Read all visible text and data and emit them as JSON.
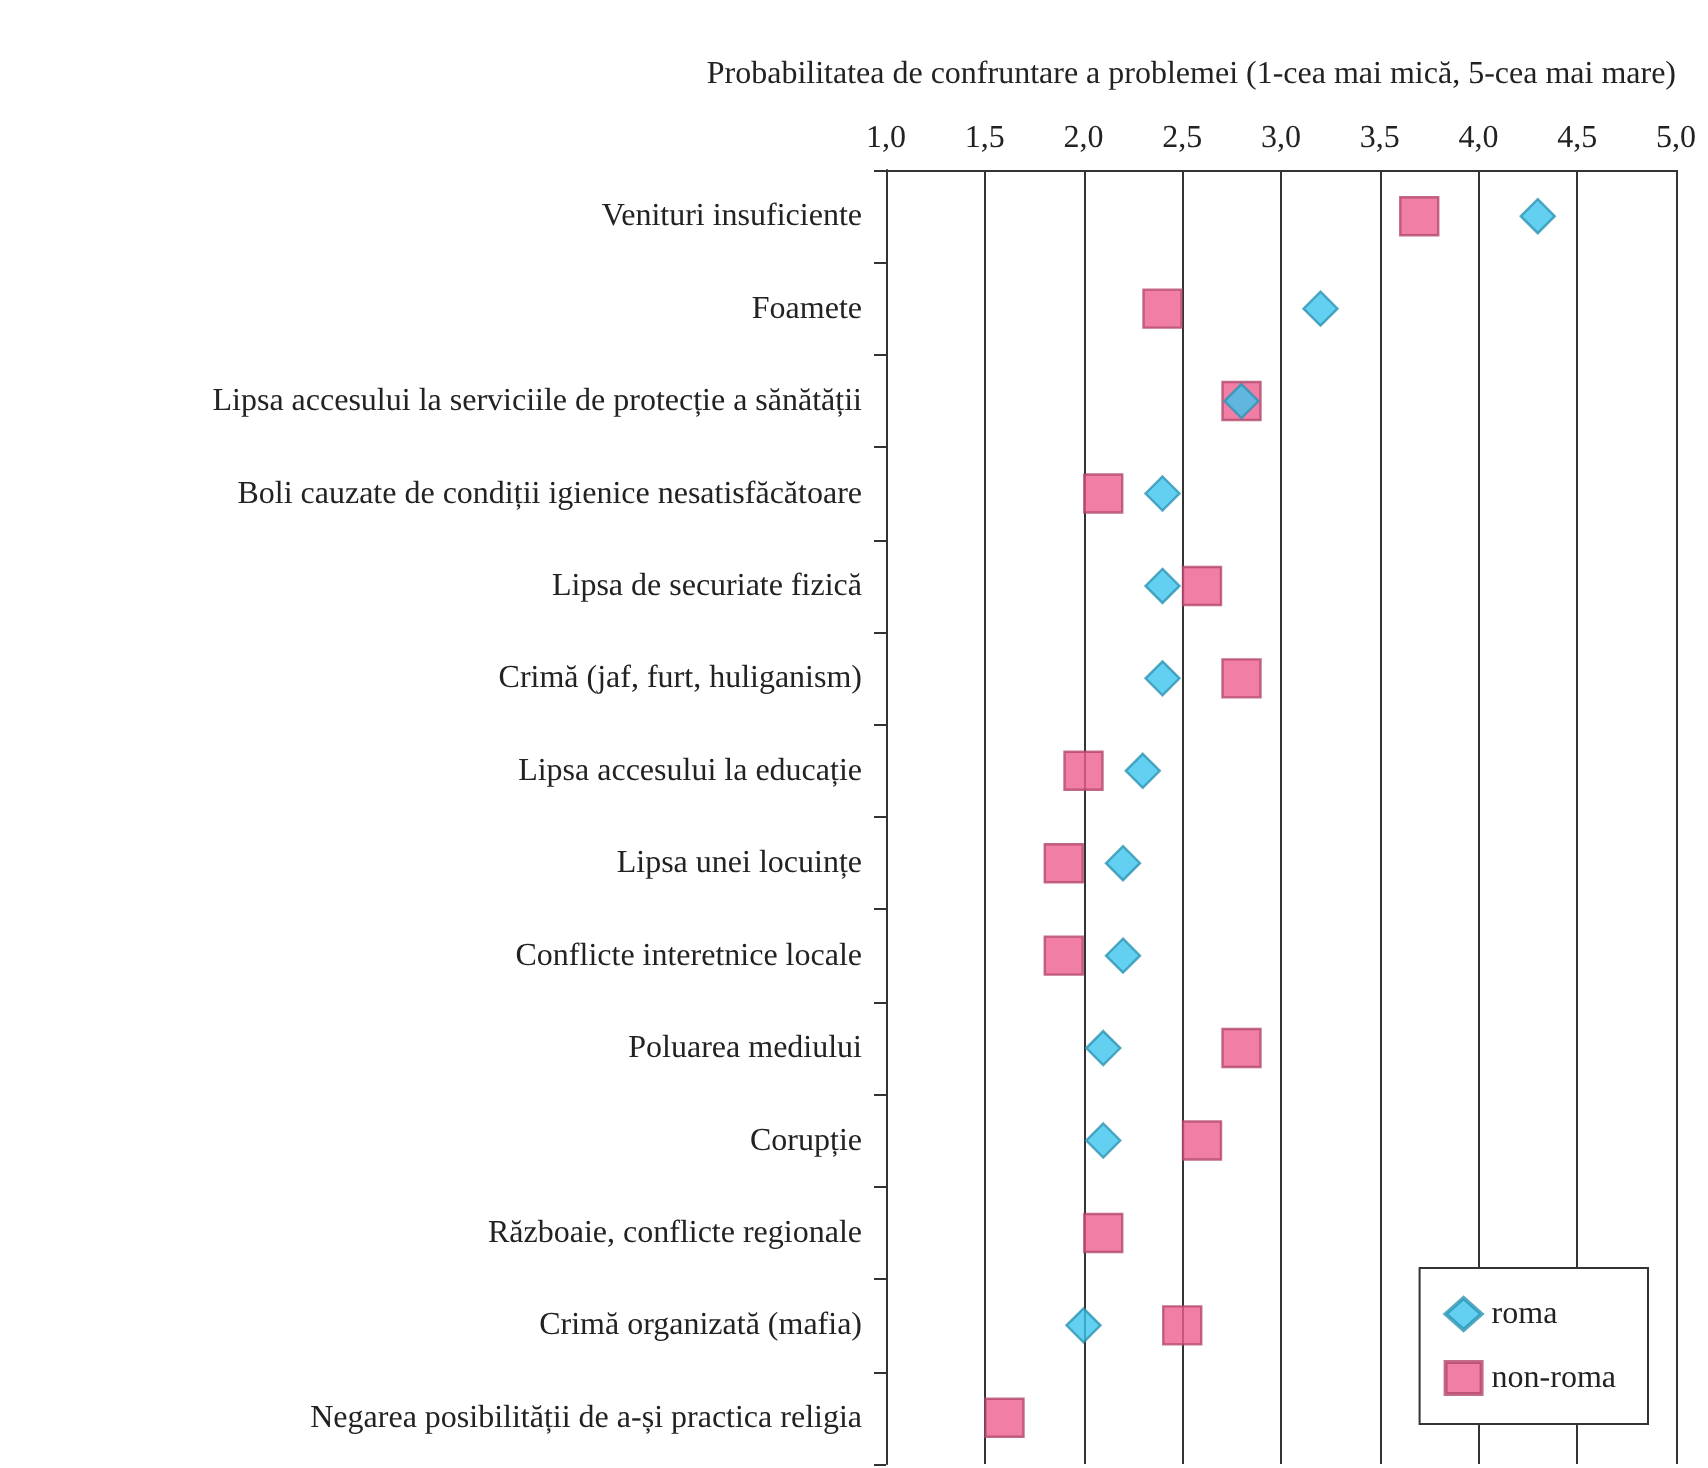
{
  "chart_data": {
    "type": "scatter",
    "orientation": "horizontal",
    "xlabel": "Probabilitatea de confruntare a problemei (1-cea mai mică, 5-cea mai mare)",
    "categories": [
      "Venituri insuficiente",
      "Foamete",
      "Lipsa accesului la serviciile de protecție a sănătății",
      "Boli cauzate de condiții igienice nesatisfăcătoare",
      "Lipsa de securiate fizică",
      "Crimă (jaf, furt, huliganism)",
      "Lipsa accesului la educație",
      "Lipsa unei locuințe",
      "Conflicte interetnice locale",
      "Poluarea mediului",
      "Corupție",
      "Războaie, conflicte regionale",
      "Crimă organizată (mafia)",
      "Negarea posibilității de a-și practica religia"
    ],
    "series": [
      {
        "name": "roma",
        "color": "#3cc4ee",
        "marker": "diamond",
        "values": [
          4.3,
          3.2,
          2.8,
          2.4,
          2.4,
          2.4,
          2.3,
          2.2,
          2.2,
          2.1,
          2.1,
          null,
          2.0,
          null
        ]
      },
      {
        "name": "non-roma",
        "color": "#ee5f8f",
        "marker": "square",
        "values": [
          3.7,
          2.4,
          2.8,
          2.1,
          2.6,
          2.8,
          2.0,
          1.9,
          1.9,
          2.8,
          2.6,
          2.1,
          2.5,
          1.6
        ]
      }
    ],
    "xlim": [
      1,
      5
    ],
    "xticks": [
      {
        "value": 1,
        "label": "1,0"
      },
      {
        "value": 1.5,
        "label": "1,5"
      },
      {
        "value": 2,
        "label": "2,0"
      },
      {
        "value": 2.5,
        "label": "2,5"
      },
      {
        "value": 3,
        "label": "3,0"
      },
      {
        "value": 3.5,
        "label": "3,5"
      },
      {
        "value": 4,
        "label": "4,0"
      },
      {
        "value": 4.5,
        "label": "4,5"
      },
      {
        "value": 5,
        "label": "5,0"
      }
    ],
    "grid": "x",
    "legend": "bottom right"
  }
}
